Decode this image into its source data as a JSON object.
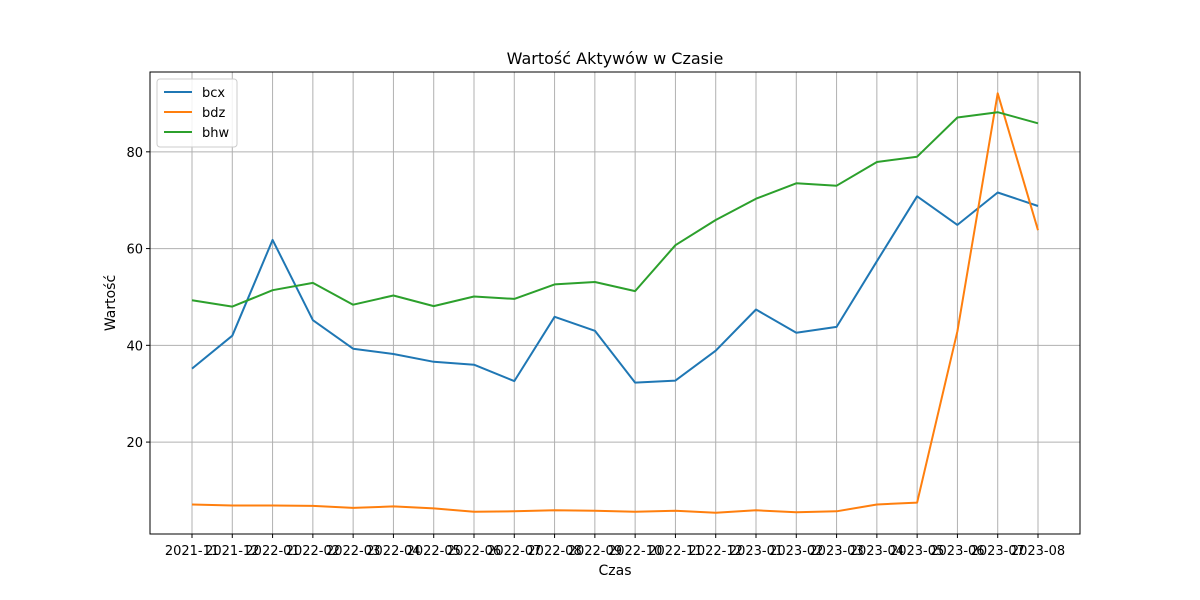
{
  "chart_data": {
    "type": "line",
    "title": "Wartość Aktywów w Czasie",
    "xlabel": "Czas",
    "ylabel": "Wartość",
    "x": [
      "2021-11",
      "2021-12",
      "2022-01",
      "2022-02",
      "2022-03",
      "2022-04",
      "2022-05",
      "2022-06",
      "2022-07",
      "2022-08",
      "2022-09",
      "2022-10",
      "2022-11",
      "2022-12",
      "2023-01",
      "2023-02",
      "2023-03",
      "2023-04",
      "2023-05",
      "2023-06",
      "2023-07",
      "2023-08"
    ],
    "ylim": [
      1,
      96.5
    ],
    "yticks": [
      20,
      40,
      60,
      80
    ],
    "grid": true,
    "legend": "top-left",
    "series": [
      {
        "name": "bcx",
        "color": "#1f77b4",
        "values": [
          35.2,
          42.0,
          61.8,
          45.2,
          39.3,
          38.2,
          36.6,
          36.0,
          32.6,
          45.9,
          43.0,
          32.3,
          32.7,
          38.9,
          47.4,
          42.6,
          43.8,
          57.4,
          70.8,
          64.9,
          71.6,
          68.8
        ]
      },
      {
        "name": "bdz",
        "color": "#ff7f0e",
        "values": [
          7.1,
          6.9,
          6.9,
          6.8,
          6.4,
          6.7,
          6.3,
          5.6,
          5.7,
          5.9,
          5.8,
          5.6,
          5.8,
          5.4,
          5.9,
          5.5,
          5.7,
          7.1,
          7.5,
          42.9,
          92.1,
          63.8
        ]
      },
      {
        "name": "bhw",
        "color": "#2ca02c",
        "values": [
          49.3,
          48.0,
          51.4,
          52.9,
          48.4,
          50.3,
          48.1,
          50.1,
          49.6,
          52.6,
          53.1,
          51.2,
          60.7,
          65.9,
          70.3,
          73.5,
          73.0,
          77.9,
          79.0,
          87.1,
          88.2,
          85.9
        ]
      }
    ]
  }
}
